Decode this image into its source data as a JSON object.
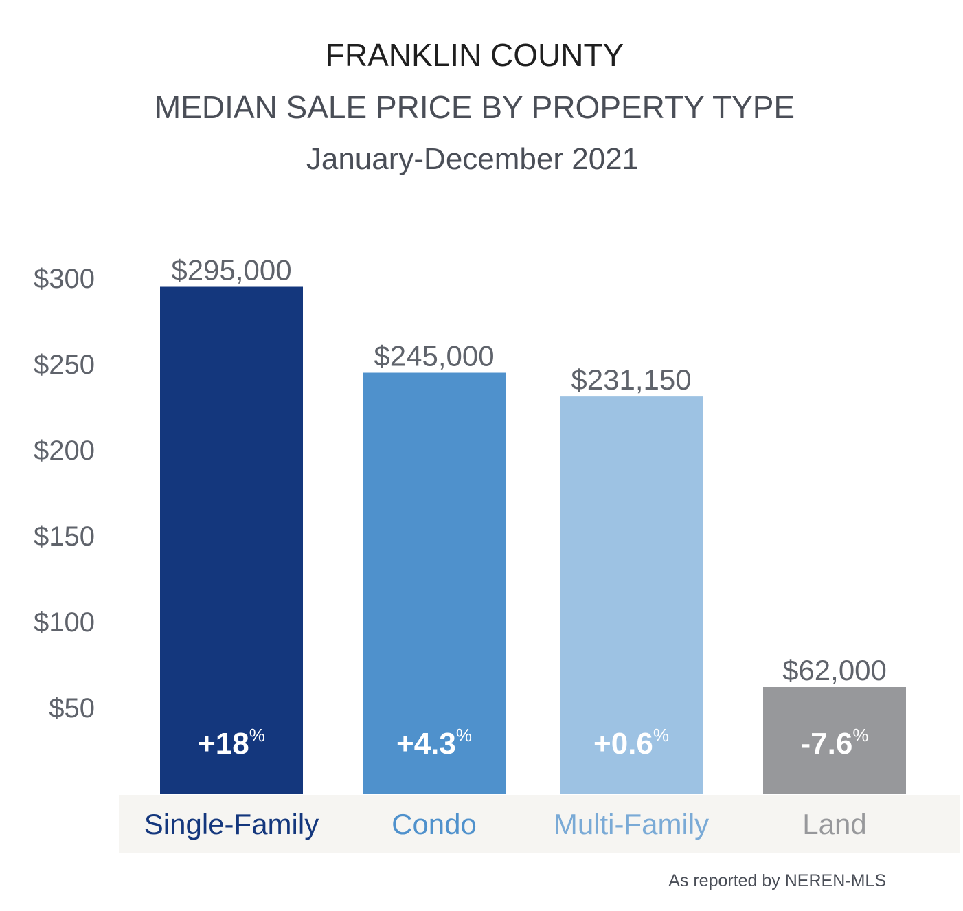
{
  "chart_data": {
    "type": "bar",
    "title": "FRANKLIN COUNTY",
    "subtitle": "MEDIAN SALE PRICE BY PROPERTY TYPE",
    "period": "January-December 2021",
    "categories": [
      "Single-Family",
      "Condo",
      "Multi-Family",
      "Land"
    ],
    "values": [
      295,
      245,
      231.15,
      62
    ],
    "value_labels": [
      "$295,000",
      "$245,000",
      "$231,150",
      "$62,000"
    ],
    "change_labels": [
      "+18",
      "+4.3",
      "+0.6",
      "-7.6"
    ],
    "change_unit": "%",
    "bar_colors": [
      "#14377d",
      "#4f91cc",
      "#9dc2e3",
      "#97989b"
    ],
    "category_colors": [
      "#14377d",
      "#4f91cc",
      "#7aaad6",
      "#97989b"
    ],
    "yticks": [
      {
        "value": 50,
        "label": "$50"
      },
      {
        "value": 100,
        "label": "$100"
      },
      {
        "value": 150,
        "label": "$150"
      },
      {
        "value": 200,
        "label": "$200"
      },
      {
        "value": 250,
        "label": "$250"
      },
      {
        "value": 300,
        "label": "$300"
      }
    ],
    "ylim": [
      0,
      300
    ],
    "grid": false,
    "source": "As reported by NEREN-MLS"
  }
}
